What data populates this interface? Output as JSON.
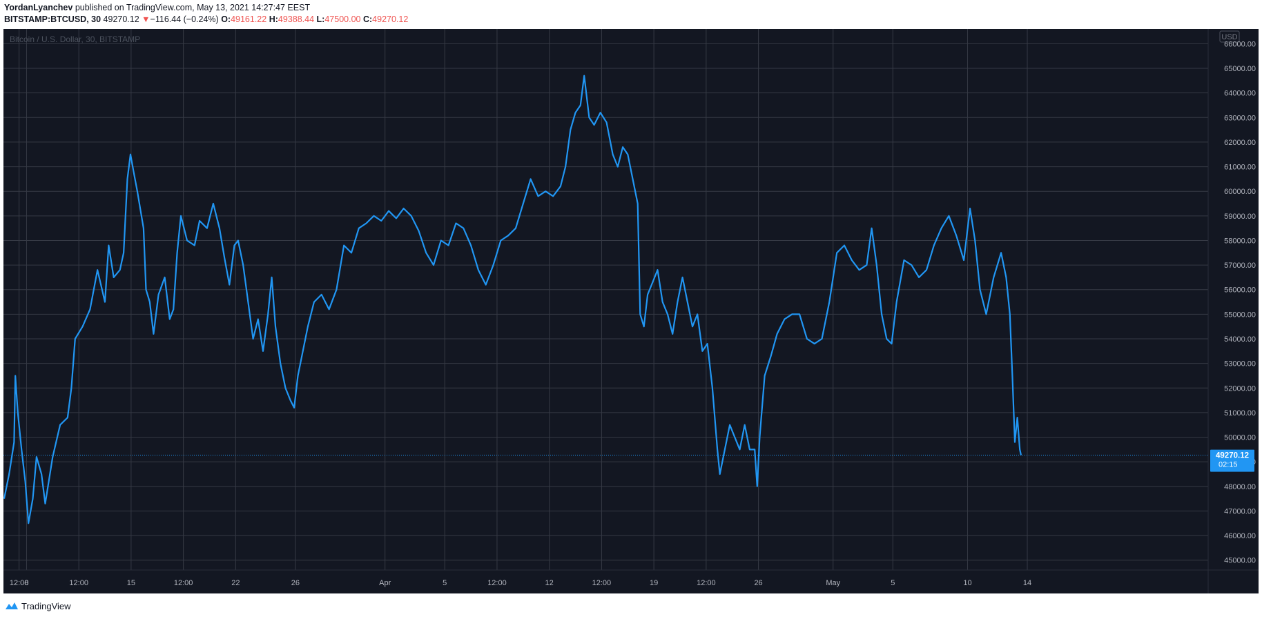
{
  "header": {
    "author": "YordanLyanchev",
    "published_text": " published on TradingView.com, May 13, 2021 14:27:47 EEST",
    "symbol": "BITSTAMP:BTCUSD, 30",
    "last": "49270.12",
    "change_arrow": "▼",
    "change": "−116.44 (−0.24%)",
    "o_label": "O:",
    "o_value": "49161.22",
    "h_label": "H:",
    "h_value": "49388.44",
    "l_label": "L:",
    "l_value": "47500.00",
    "c_label": "C:",
    "c_value": "49270.12"
  },
  "footer": {
    "brand": "TradingView",
    "logo_icon": "tradingview-logo-icon"
  },
  "colors": {
    "background": "#131722",
    "line": "#2196f3",
    "grid": "#363a45",
    "axis_text": "#b2b5be",
    "badge": "#2196f3",
    "down": "#ef5350"
  },
  "chart_data": {
    "type": "line",
    "watermark": "Bitcoin / U.S. Dollar, 30, BITSTAMP",
    "currency_label": "USD",
    "last_price_label": "49270.12",
    "countdown_label": "02:15",
    "last_price": 49270.12,
    "ylim": [
      44600,
      66600
    ],
    "y_ticks": [
      45000,
      46000,
      47000,
      48000,
      49000,
      50000,
      51000,
      52000,
      53000,
      54000,
      55000,
      56000,
      57000,
      58000,
      59000,
      60000,
      61000,
      62000,
      63000,
      64000,
      65000,
      66000
    ],
    "y_tick_labels": [
      "45000.00",
      "46000.00",
      "47000.00",
      "48000.00",
      "49000.00",
      "50000.00",
      "51000.00",
      "52000.00",
      "53000.00",
      "54000.00",
      "55000.00",
      "56000.00",
      "57000.00",
      "58000.00",
      "59000.00",
      "60000.00",
      "61000.00",
      "62000.00",
      "63000.00",
      "64000.00",
      "65000.00",
      "66000.00"
    ],
    "x_domain": [
      "2021-03-06T12:00",
      "2021-05-14T00:00"
    ],
    "x_ticks": [
      {
        "t": "2021-03-07T12:00",
        "label": "12:00"
      },
      {
        "t": "2021-03-08T00:00",
        "label": "8"
      },
      {
        "t": "2021-03-11T12:00",
        "label": "12:00"
      },
      {
        "t": "2021-03-15T00:00",
        "label": "15"
      },
      {
        "t": "2021-03-18T12:00",
        "label": "12:00"
      },
      {
        "t": "2021-03-22T00:00",
        "label": "22"
      },
      {
        "t": "2021-03-26T00:00",
        "label": "26"
      },
      {
        "t": "2021-04-01T00:00",
        "label": "Apr"
      },
      {
        "t": "2021-04-05T00:00",
        "label": "5"
      },
      {
        "t": "2021-04-08T12:00",
        "label": "12:00"
      },
      {
        "t": "2021-04-12T00:00",
        "label": "12"
      },
      {
        "t": "2021-04-15T12:00",
        "label": "12:00"
      },
      {
        "t": "2021-04-19T00:00",
        "label": "19"
      },
      {
        "t": "2021-04-22T12:00",
        "label": "12:00"
      },
      {
        "t": "2021-04-26T00:00",
        "label": "26"
      },
      {
        "t": "2021-05-01T00:00",
        "label": "May"
      },
      {
        "t": "2021-05-05T00:00",
        "label": "5"
      },
      {
        "t": "2021-05-10T00:00",
        "label": "10"
      },
      {
        "t": "2021-05-14T00:00",
        "label": "14"
      }
    ],
    "series": [
      {
        "points": [
          [
            "2021-03-06T12:00",
            47500
          ],
          [
            "2021-03-06T20:00",
            48500
          ],
          [
            "2021-03-07T04:00",
            49800
          ],
          [
            "2021-03-07T06:00",
            52500
          ],
          [
            "2021-03-07T10:00",
            51000
          ],
          [
            "2021-03-07T16:00",
            49500
          ],
          [
            "2021-03-07T22:00",
            48200
          ],
          [
            "2021-03-08T03:00",
            46500
          ],
          [
            "2021-03-08T10:00",
            47500
          ],
          [
            "2021-03-08T16:00",
            49200
          ],
          [
            "2021-03-09T00:00",
            48500
          ],
          [
            "2021-03-09T06:00",
            47300
          ],
          [
            "2021-03-09T18:00",
            49200
          ],
          [
            "2021-03-10T06:00",
            50500
          ],
          [
            "2021-03-10T18:00",
            50800
          ],
          [
            "2021-03-11T00:00",
            52000
          ],
          [
            "2021-03-11T06:00",
            54000
          ],
          [
            "2021-03-11T18:00",
            54500
          ],
          [
            "2021-03-12T06:00",
            55200
          ],
          [
            "2021-03-12T18:00",
            56800
          ],
          [
            "2021-03-13T06:00",
            55500
          ],
          [
            "2021-03-13T12:00",
            57800
          ],
          [
            "2021-03-13T20:00",
            56500
          ],
          [
            "2021-03-14T06:00",
            56800
          ],
          [
            "2021-03-14T12:00",
            57500
          ],
          [
            "2021-03-14T18:00",
            60500
          ],
          [
            "2021-03-14T23:00",
            61500
          ],
          [
            "2021-03-15T04:00",
            60800
          ],
          [
            "2021-03-15T10:00",
            60000
          ],
          [
            "2021-03-15T20:00",
            58500
          ],
          [
            "2021-03-16T00:00",
            56000
          ],
          [
            "2021-03-16T06:00",
            55500
          ],
          [
            "2021-03-16T12:00",
            54200
          ],
          [
            "2021-03-16T20:00",
            55800
          ],
          [
            "2021-03-17T06:00",
            56500
          ],
          [
            "2021-03-17T14:00",
            54800
          ],
          [
            "2021-03-17T20:00",
            55200
          ],
          [
            "2021-03-18T02:00",
            57500
          ],
          [
            "2021-03-18T08:00",
            59000
          ],
          [
            "2021-03-18T18:00",
            58000
          ],
          [
            "2021-03-19T06:00",
            57800
          ],
          [
            "2021-03-19T14:00",
            58800
          ],
          [
            "2021-03-20T02:00",
            58500
          ],
          [
            "2021-03-20T12:00",
            59500
          ],
          [
            "2021-03-20T22:00",
            58500
          ],
          [
            "2021-03-21T06:00",
            57300
          ],
          [
            "2021-03-21T14:00",
            56200
          ],
          [
            "2021-03-21T22:00",
            57800
          ],
          [
            "2021-03-22T04:00",
            58000
          ],
          [
            "2021-03-22T12:00",
            57000
          ],
          [
            "2021-03-22T20:00",
            55500
          ],
          [
            "2021-03-23T04:00",
            54000
          ],
          [
            "2021-03-23T12:00",
            54800
          ],
          [
            "2021-03-23T20:00",
            53500
          ],
          [
            "2021-03-24T04:00",
            55000
          ],
          [
            "2021-03-24T10:00",
            56500
          ],
          [
            "2021-03-24T16:00",
            54500
          ],
          [
            "2021-03-25T00:00",
            53000
          ],
          [
            "2021-03-25T08:00",
            52000
          ],
          [
            "2021-03-25T16:00",
            51500
          ],
          [
            "2021-03-25T22:00",
            51200
          ],
          [
            "2021-03-26T04:00",
            52500
          ],
          [
            "2021-03-26T12:00",
            53500
          ],
          [
            "2021-03-26T20:00",
            54500
          ],
          [
            "2021-03-27T06:00",
            55500
          ],
          [
            "2021-03-27T18:00",
            55800
          ],
          [
            "2021-03-28T06:00",
            55200
          ],
          [
            "2021-03-28T18:00",
            56000
          ],
          [
            "2021-03-29T06:00",
            57800
          ],
          [
            "2021-03-29T18:00",
            57500
          ],
          [
            "2021-03-30T06:00",
            58500
          ],
          [
            "2021-03-30T18:00",
            58700
          ],
          [
            "2021-03-31T06:00",
            59000
          ],
          [
            "2021-03-31T18:00",
            58800
          ],
          [
            "2021-04-01T06:00",
            59200
          ],
          [
            "2021-04-01T18:00",
            58900
          ],
          [
            "2021-04-02T06:00",
            59300
          ],
          [
            "2021-04-02T18:00",
            59000
          ],
          [
            "2021-04-03T06:00",
            58400
          ],
          [
            "2021-04-03T18:00",
            57500
          ],
          [
            "2021-04-04T06:00",
            57000
          ],
          [
            "2021-04-04T18:00",
            58000
          ],
          [
            "2021-04-05T06:00",
            57800
          ],
          [
            "2021-04-05T18:00",
            58700
          ],
          [
            "2021-04-06T06:00",
            58500
          ],
          [
            "2021-04-06T18:00",
            57800
          ],
          [
            "2021-04-07T06:00",
            56800
          ],
          [
            "2021-04-07T18:00",
            56200
          ],
          [
            "2021-04-08T06:00",
            57000
          ],
          [
            "2021-04-08T18:00",
            58000
          ],
          [
            "2021-04-09T06:00",
            58200
          ],
          [
            "2021-04-09T18:00",
            58500
          ],
          [
            "2021-04-10T06:00",
            59500
          ],
          [
            "2021-04-10T18:00",
            60500
          ],
          [
            "2021-04-11T06:00",
            59800
          ],
          [
            "2021-04-11T18:00",
            60000
          ],
          [
            "2021-04-12T06:00",
            59800
          ],
          [
            "2021-04-12T18:00",
            60200
          ],
          [
            "2021-04-13T02:00",
            61000
          ],
          [
            "2021-04-13T10:00",
            62500
          ],
          [
            "2021-04-13T18:00",
            63200
          ],
          [
            "2021-04-14T02:00",
            63500
          ],
          [
            "2021-04-14T08:00",
            64700
          ],
          [
            "2021-04-14T16:00",
            63000
          ],
          [
            "2021-04-15T00:00",
            62700
          ],
          [
            "2021-04-15T10:00",
            63200
          ],
          [
            "2021-04-15T20:00",
            62800
          ],
          [
            "2021-04-16T06:00",
            61500
          ],
          [
            "2021-04-16T14:00",
            61000
          ],
          [
            "2021-04-16T22:00",
            61800
          ],
          [
            "2021-04-17T06:00",
            61500
          ],
          [
            "2021-04-17T14:00",
            60500
          ],
          [
            "2021-04-17T22:00",
            59500
          ],
          [
            "2021-04-18T02:00",
            55000
          ],
          [
            "2021-04-18T08:00",
            54500
          ],
          [
            "2021-04-18T14:00",
            55800
          ],
          [
            "2021-04-18T22:00",
            56300
          ],
          [
            "2021-04-19T06:00",
            56800
          ],
          [
            "2021-04-19T14:00",
            55500
          ],
          [
            "2021-04-19T22:00",
            55000
          ],
          [
            "2021-04-20T06:00",
            54200
          ],
          [
            "2021-04-20T14:00",
            55500
          ],
          [
            "2021-04-20T22:00",
            56500
          ],
          [
            "2021-04-21T06:00",
            55500
          ],
          [
            "2021-04-21T14:00",
            54500
          ],
          [
            "2021-04-21T22:00",
            55000
          ],
          [
            "2021-04-22T06:00",
            53500
          ],
          [
            "2021-04-22T14:00",
            53800
          ],
          [
            "2021-04-22T22:00",
            52000
          ],
          [
            "2021-04-23T06:00",
            49500
          ],
          [
            "2021-04-23T10:00",
            48500
          ],
          [
            "2021-04-23T18:00",
            49500
          ],
          [
            "2021-04-24T02:00",
            50500
          ],
          [
            "2021-04-24T10:00",
            50000
          ],
          [
            "2021-04-24T18:00",
            49500
          ],
          [
            "2021-04-25T02:00",
            50500
          ],
          [
            "2021-04-25T10:00",
            49500
          ],
          [
            "2021-04-25T18:00",
            49500
          ],
          [
            "2021-04-25T22:00",
            48000
          ],
          [
            "2021-04-26T02:00",
            50000
          ],
          [
            "2021-04-26T10:00",
            52500
          ],
          [
            "2021-04-26T20:00",
            53300
          ],
          [
            "2021-04-27T06:00",
            54200
          ],
          [
            "2021-04-27T18:00",
            54800
          ],
          [
            "2021-04-28T06:00",
            55000
          ],
          [
            "2021-04-28T18:00",
            55000
          ],
          [
            "2021-04-29T06:00",
            54000
          ],
          [
            "2021-04-29T18:00",
            53800
          ],
          [
            "2021-04-30T06:00",
            54000
          ],
          [
            "2021-04-30T18:00",
            55500
          ],
          [
            "2021-05-01T06:00",
            57500
          ],
          [
            "2021-05-01T18:00",
            57800
          ],
          [
            "2021-05-02T06:00",
            57200
          ],
          [
            "2021-05-02T18:00",
            56800
          ],
          [
            "2021-05-03T06:00",
            57000
          ],
          [
            "2021-05-03T14:00",
            58500
          ],
          [
            "2021-05-03T22:00",
            57000
          ],
          [
            "2021-05-04T06:00",
            55000
          ],
          [
            "2021-05-04T14:00",
            54000
          ],
          [
            "2021-05-04T22:00",
            53800
          ],
          [
            "2021-05-05T06:00",
            55500
          ],
          [
            "2021-05-05T18:00",
            57200
          ],
          [
            "2021-05-06T06:00",
            57000
          ],
          [
            "2021-05-06T18:00",
            56500
          ],
          [
            "2021-05-07T06:00",
            56800
          ],
          [
            "2021-05-07T18:00",
            57800
          ],
          [
            "2021-05-08T06:00",
            58500
          ],
          [
            "2021-05-08T18:00",
            59000
          ],
          [
            "2021-05-09T06:00",
            58200
          ],
          [
            "2021-05-09T18:00",
            57200
          ],
          [
            "2021-05-10T04:00",
            59300
          ],
          [
            "2021-05-10T12:00",
            58000
          ],
          [
            "2021-05-10T20:00",
            56000
          ],
          [
            "2021-05-11T06:00",
            55000
          ],
          [
            "2021-05-11T18:00",
            56500
          ],
          [
            "2021-05-12T06:00",
            57500
          ],
          [
            "2021-05-12T14:00",
            56500
          ],
          [
            "2021-05-12T20:00",
            55000
          ],
          [
            "2021-05-13T00:00",
            52500
          ],
          [
            "2021-05-13T04:00",
            49800
          ],
          [
            "2021-05-13T08:00",
            50800
          ],
          [
            "2021-05-13T12:00",
            49500
          ],
          [
            "2021-05-13T14:00",
            49270
          ]
        ]
      }
    ]
  }
}
